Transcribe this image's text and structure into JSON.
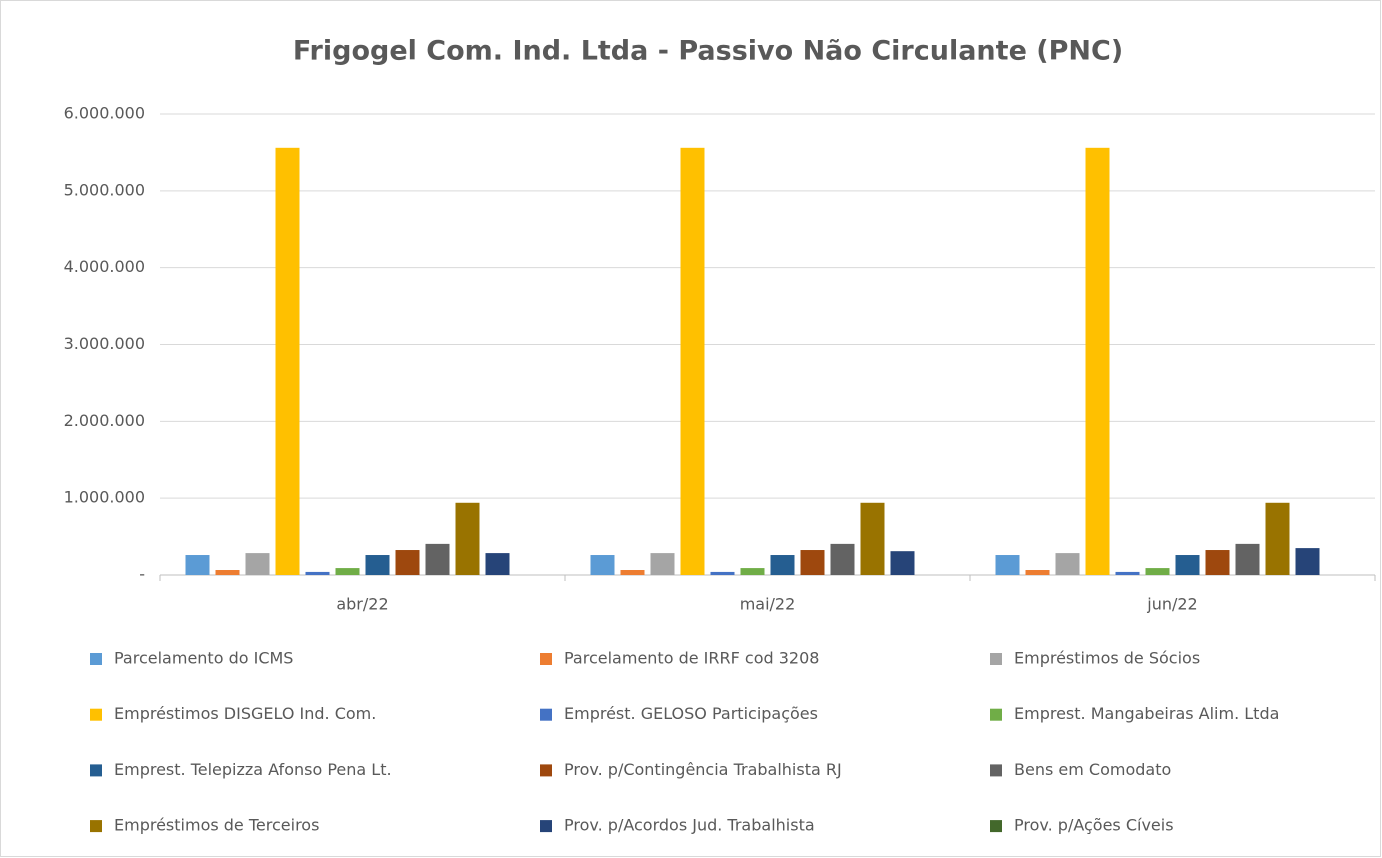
{
  "chart_data": {
    "type": "bar",
    "title": "Frigogel Com. Ind. Ltda - Passivo Não Circulante (PNC)",
    "categories": [
      "abr/22",
      "mai/22",
      "jun/22"
    ],
    "series": [
      {
        "name": "Parcelamento do ICMS",
        "color": "#5b9bd5",
        "values": [
          260000,
          260000,
          260000
        ]
      },
      {
        "name": "Parcelamento de IRRF cod 3208",
        "color": "#ed7d31",
        "values": [
          65000,
          65000,
          65000
        ]
      },
      {
        "name": "Empréstimos de Sócios",
        "color": "#a5a5a5",
        "values": [
          285000,
          285000,
          285000
        ]
      },
      {
        "name": "Empréstimos DISGELO Ind. Com.",
        "color": "#ffc000",
        "values": [
          5560000,
          5560000,
          5560000
        ]
      },
      {
        "name": "Emprést. GELOSO Participações",
        "color": "#4472c4",
        "values": [
          40000,
          40000,
          40000
        ]
      },
      {
        "name": "Emprest. Mangabeiras Alim. Ltda",
        "color": "#70ad47",
        "values": [
          90000,
          90000,
          90000
        ]
      },
      {
        "name": "Emprest. Telepizza Afonso Pena Lt.",
        "color": "#255e91",
        "values": [
          260000,
          260000,
          260000
        ]
      },
      {
        "name": "Prov. p/Contingência Trabalhista RJ",
        "color": "#9e480e",
        "values": [
          325000,
          325000,
          325000
        ]
      },
      {
        "name": "Bens em Comodato",
        "color": "#636363",
        "values": [
          405000,
          405000,
          405000
        ]
      },
      {
        "name": "Empréstimos de Terceiros",
        "color": "#997300",
        "values": [
          940000,
          940000,
          940000
        ]
      },
      {
        "name": "Prov. p/Acordos Jud. Trabalhista",
        "color": "#264478",
        "values": [
          285000,
          310000,
          350000
        ]
      },
      {
        "name": "Prov. p/Ações Cíveis",
        "color": "#43682b",
        "values": [
          0,
          0,
          0
        ]
      }
    ],
    "ylim": [
      0,
      6000000
    ],
    "yticks": [
      {
        "value": 0,
        "label": "-"
      },
      {
        "value": 1000000,
        "label": "1.000.000"
      },
      {
        "value": 2000000,
        "label": "2.000.000"
      },
      {
        "value": 3000000,
        "label": "3.000.000"
      },
      {
        "value": 4000000,
        "label": "4.000.000"
      },
      {
        "value": 5000000,
        "label": "5.000.000"
      },
      {
        "value": 6000000,
        "label": "6.000.000"
      }
    ],
    "grid": true,
    "legend": "bottom"
  }
}
